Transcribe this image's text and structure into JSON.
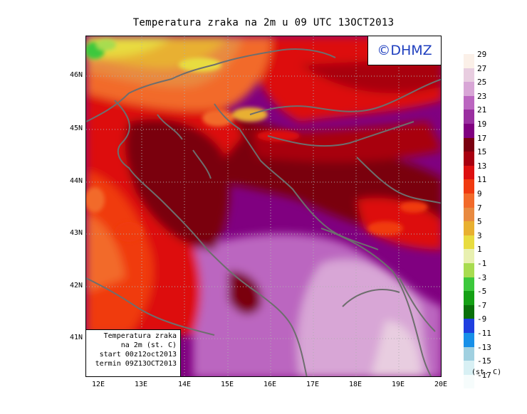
{
  "title": "Temperatura zraka na 2m u 09 UTC 13OCT2013",
  "logo_text": "©DHMZ",
  "info": {
    "line1": "Temperatura zraka",
    "line2": "na 2m (st. C)",
    "line3": "start 00z12oct2013",
    "line4": "termin 09Z13OCT2013"
  },
  "lat_labels": [
    "46N",
    "45N",
    "44N",
    "43N",
    "42N",
    "41N"
  ],
  "lon_labels": [
    "12E",
    "13E",
    "14E",
    "15E",
    "16E",
    "17E",
    "18E",
    "19E",
    "20E"
  ],
  "legend_unit": "(st. C)",
  "legend": [
    {
      "label": "29",
      "color": "#fbf0e8"
    },
    {
      "label": "27",
      "color": "#e8cde0"
    },
    {
      "label": "25",
      "color": "#d8a6d6"
    },
    {
      "label": "23",
      "color": "#bb66c0"
    },
    {
      "label": "21",
      "color": "#9a2fa0"
    },
    {
      "label": "19",
      "color": "#800080"
    },
    {
      "label": "17",
      "color": "#7a0010"
    },
    {
      "label": "15",
      "color": "#a80010"
    },
    {
      "label": "13",
      "color": "#dd1010"
    },
    {
      "label": "11",
      "color": "#f03a10"
    },
    {
      "label": "9",
      "color": "#f26a2a"
    },
    {
      "label": "7",
      "color": "#e88a40"
    },
    {
      "label": "5",
      "color": "#e8b030"
    },
    {
      "label": "3",
      "color": "#e8dc40"
    },
    {
      "label": "1",
      "color": "#e8f0b0"
    },
    {
      "label": "-1",
      "color": "#a8dc50"
    },
    {
      "label": "-3",
      "color": "#3cc83c"
    },
    {
      "label": "-5",
      "color": "#14a014"
    },
    {
      "label": "-7",
      "color": "#0a700a"
    },
    {
      "label": "-9",
      "color": "#1f3fdf"
    },
    {
      "label": "-11",
      "color": "#1890e8"
    },
    {
      "label": "-13",
      "color": "#a0d0e0"
    },
    {
      "label": "-15",
      "color": "#d8f0f4"
    },
    {
      "label": "-17",
      "color": "#f6fcfc"
    }
  ]
}
